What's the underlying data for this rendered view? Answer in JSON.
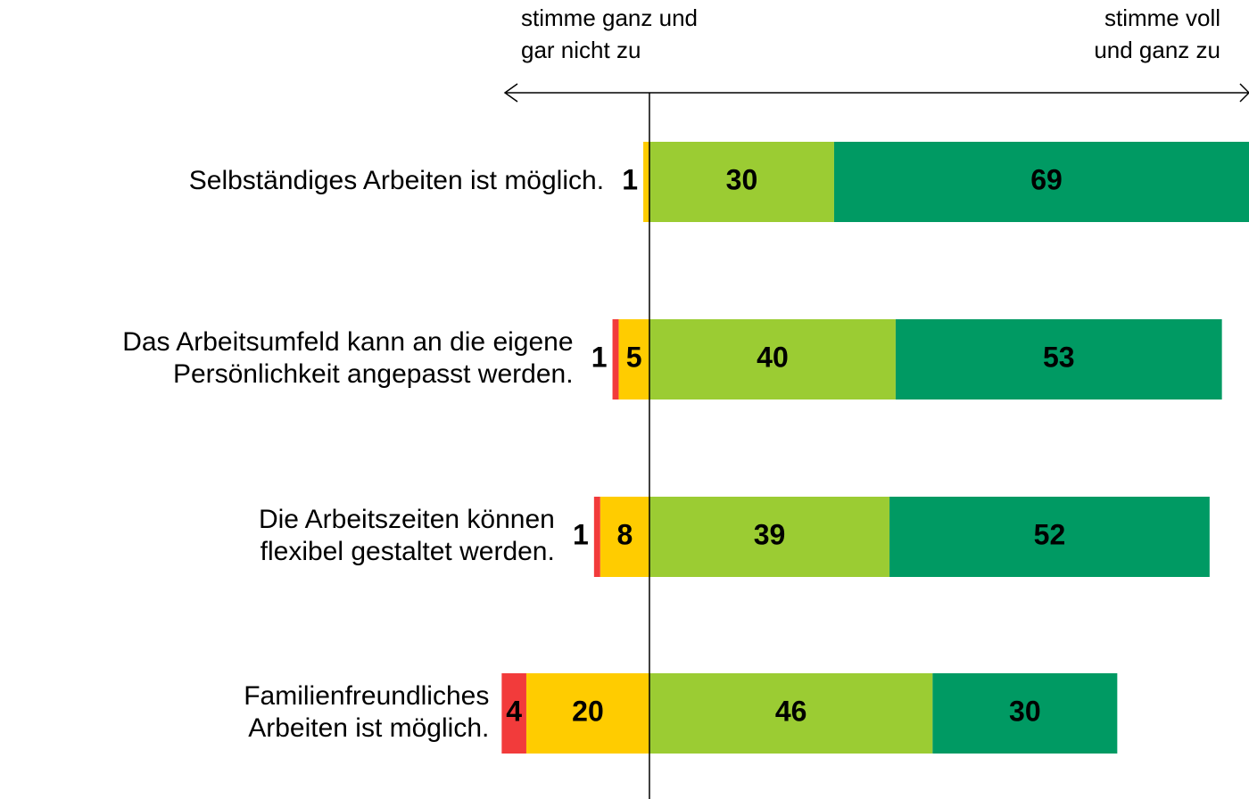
{
  "chart_data": {
    "type": "diverging_bar",
    "left_label": [
      "stimme ganz und",
      "gar nicht zu"
    ],
    "right_label": [
      "stimme voll",
      "und ganz zu"
    ],
    "categories": [
      [
        "Selbständiges Arbeiten ist möglich."
      ],
      [
        "Das Arbeitsumfeld kann an die eigene",
        "Persönlichkeit angepasst werden."
      ],
      [
        "Die Arbeitszeiten können",
        "flexibel gestaltet werden."
      ],
      [
        "Familienfreundliches",
        "Arbeiten ist möglich."
      ]
    ],
    "series": [
      {
        "color": "#f23b3b",
        "side": "left",
        "values": [
          null,
          1,
          1,
          4
        ]
      },
      {
        "color": "#ffcc00",
        "side": "left",
        "values": [
          1,
          5,
          8,
          20
        ]
      },
      {
        "color": "#9bcc33",
        "side": "right",
        "values": [
          30,
          40,
          39,
          46
        ]
      },
      {
        "color": "#009a63",
        "side": "right",
        "values": [
          69,
          53,
          52,
          30
        ]
      }
    ],
    "xlim": [
      -105.5,
      97.4
    ]
  }
}
